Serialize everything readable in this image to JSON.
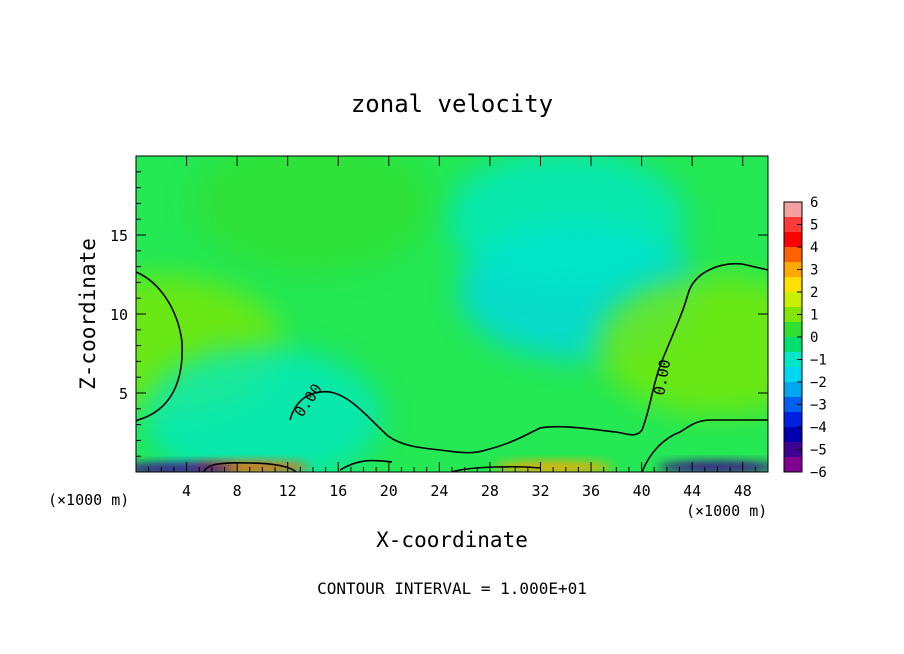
{
  "chart_data": {
    "type": "heatmap",
    "title": "zonal velocity",
    "xlabel": "X-coordinate",
    "ylabel": "Z-coordinate",
    "x_unit_left": "(×1000 m)",
    "x_unit_right": "(×1000 m)",
    "footer": "CONTOUR INTERVAL = 1.000E+01",
    "xlim": [
      0,
      50
    ],
    "ylim": [
      0,
      20
    ],
    "x_ticks": [
      4,
      8,
      12,
      16,
      20,
      24,
      28,
      32,
      36,
      40,
      44,
      48
    ],
    "y_ticks": [
      5,
      10,
      15
    ],
    "contour_label": "0.00",
    "colorbar": {
      "ticks": [
        6,
        5,
        4,
        3,
        2,
        1,
        0,
        -1,
        -2,
        -3,
        -4,
        -5,
        -6
      ],
      "tick_labels": [
        "6",
        "5",
        "4",
        "3",
        "2",
        "1",
        "0",
        "−1",
        "−2",
        "−3",
        "−4",
        "−5",
        "−6"
      ],
      "colors": [
        "#f4a0a0",
        "#ff3838",
        "#ff0000",
        "#ff6000",
        "#ffa800",
        "#ffe000",
        "#c8f000",
        "#80e800",
        "#30e030",
        "#00e070",
        "#00e8c8",
        "#00d8f0",
        "#00a8f0",
        "#0060f0",
        "#0020e0",
        "#0000b0",
        "#400090",
        "#800090"
      ]
    },
    "field": {
      "description": "zonal velocity field over X 0-50 (x1000 m), Z 0-20",
      "blobs": [
        {
          "x": 35,
          "z": 11.5,
          "value": -2.0
        },
        {
          "x": 34,
          "z": 16,
          "value": -1.3
        },
        {
          "x": 2,
          "z": 8,
          "value": 0.9
        },
        {
          "x": 46,
          "z": 8,
          "value": 0.9
        },
        {
          "x": 10,
          "z": 3.5,
          "value": -1.3
        },
        {
          "x": 14,
          "z": 17,
          "value": 0.4
        },
        {
          "x": 33,
          "z": 0.3,
          "value": 3.5
        },
        {
          "x": 9,
          "z": 0.3,
          "value": 4.0
        },
        {
          "x": 3,
          "z": 0.2,
          "value": -5.0
        },
        {
          "x": 46,
          "z": 0.3,
          "value": -5.0
        }
      ]
    }
  }
}
